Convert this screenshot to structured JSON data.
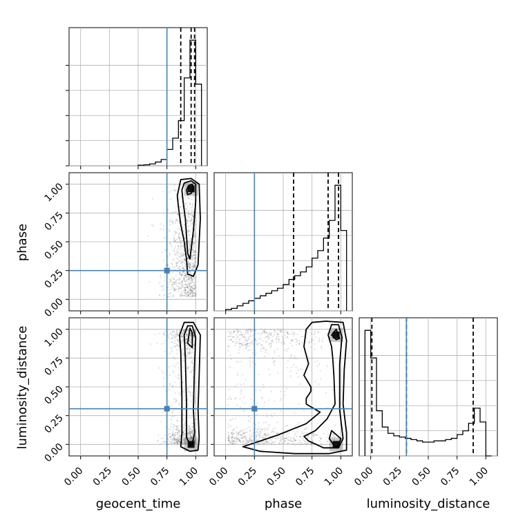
{
  "chart_data": {
    "type": "corner",
    "parameters": [
      {
        "key": "geocent_time",
        "label": "geocent_time"
      },
      {
        "key": "phase",
        "label": "phase"
      },
      {
        "key": "luminosity_distance",
        "label": "luminosity_distance"
      }
    ],
    "axis_range": [
      -0.1,
      1.1
    ],
    "ticks": [
      0.0,
      0.25,
      0.5,
      0.75,
      1.0
    ],
    "tick_labels": [
      "0.00",
      "0.25",
      "0.50",
      "0.75",
      "1.00"
    ],
    "truth_values": {
      "geocent_time": 0.75,
      "phase": 0.25,
      "luminosity_distance": 0.31
    },
    "quantiles": {
      "geocent_time": [
        0.87,
        0.96,
        0.99
      ],
      "phase": [
        0.59,
        0.89,
        0.98
      ],
      "luminosity_distance": [
        0.01,
        0.31,
        0.89
      ]
    },
    "histograms": {
      "geocent_time": {
        "bin_edges": [
          0.5,
          0.55,
          0.6,
          0.65,
          0.7,
          0.75,
          0.8,
          0.85,
          0.9,
          0.95,
          1.0,
          1.05
        ],
        "counts": [
          0.5,
          0.8,
          1.5,
          3,
          5,
          13,
          22,
          36,
          70,
          100,
          65
        ]
      },
      "phase": {
        "bin_edges": [
          0.0,
          0.05,
          0.1,
          0.15,
          0.2,
          0.25,
          0.3,
          0.35,
          0.4,
          0.45,
          0.5,
          0.55,
          0.6,
          0.65,
          0.7,
          0.75,
          0.8,
          0.85,
          0.9,
          0.95,
          1.0,
          1.05
        ],
        "counts": [
          1,
          2,
          4,
          6,
          8,
          10,
          12,
          14,
          16,
          18,
          21,
          25,
          28,
          31,
          35,
          42,
          48,
          58,
          72,
          100,
          64
        ]
      },
      "luminosity_distance": {
        "bin_edges": [
          -0.05,
          0.0,
          0.05,
          0.1,
          0.15,
          0.2,
          0.25,
          0.3,
          0.35,
          0.4,
          0.45,
          0.5,
          0.55,
          0.6,
          0.65,
          0.7,
          0.75,
          0.8,
          0.85,
          0.9,
          0.95,
          1.0,
          1.05
        ],
        "counts": [
          100,
          78,
          36,
          23,
          18,
          16,
          15,
          14,
          13,
          12,
          11,
          11,
          12,
          12,
          13,
          14,
          17,
          20,
          26,
          38,
          27,
          0
        ]
      }
    },
    "contours": {
      "phase_vs_geocent_time": [
        {
          "level": "inner",
          "x": [
            0.92,
            0.94,
            0.97,
            0.98,
            0.96,
            0.93,
            0.92
          ],
          "y": [
            0.95,
            0.99,
            1.0,
            0.96,
            0.92,
            0.91,
            0.95
          ]
        },
        {
          "level": "middle",
          "x": [
            0.88,
            0.9,
            0.96,
            1.0,
            1.0,
            0.98,
            0.95,
            0.93,
            0.92,
            0.91,
            0.89,
            0.88
          ],
          "y": [
            0.95,
            1.01,
            1.03,
            1.0,
            0.85,
            0.6,
            0.35,
            0.4,
            0.55,
            0.7,
            0.85,
            0.95
          ]
        },
        {
          "level": "outer",
          "x": [
            0.84,
            0.87,
            0.96,
            1.03,
            1.04,
            1.02,
            0.98,
            0.93,
            0.92,
            0.9,
            0.87,
            0.85,
            0.84
          ],
          "y": [
            0.9,
            1.04,
            1.05,
            1.0,
            0.7,
            0.3,
            0.2,
            0.22,
            0.35,
            0.5,
            0.65,
            0.8,
            0.9
          ]
        }
      ],
      "luminosity_distance_vs_geocent_time": [
        {
          "level": "inner",
          "x": [
            0.93,
            0.95,
            0.97,
            0.97,
            0.95,
            0.93
          ],
          "y": [
            0.88,
            1.01,
            0.97,
            0.84,
            0.86,
            0.88
          ]
        },
        {
          "level": "middle",
          "x": [
            0.9,
            0.93,
            0.97,
            1.0,
            0.99,
            0.98,
            0.99,
            0.97,
            0.95,
            0.92,
            0.92,
            0.91,
            0.9
          ],
          "y": [
            0.95,
            1.03,
            1.03,
            0.93,
            0.7,
            0.3,
            0.1,
            0.0,
            0.0,
            0.06,
            0.35,
            0.75,
            0.95
          ]
        },
        {
          "level": "outer",
          "x": [
            0.86,
            0.9,
            0.98,
            1.04,
            1.03,
            1.02,
            1.03,
            1.02,
            0.95,
            0.87,
            0.88,
            0.88,
            0.87,
            0.86
          ],
          "y": [
            0.95,
            1.06,
            1.06,
            0.95,
            0.6,
            0.3,
            0.05,
            -0.05,
            -0.06,
            -0.02,
            0.1,
            0.4,
            0.8,
            0.95
          ]
        }
      ],
      "luminosity_distance_vs_phase": [
        {
          "level": "inner",
          "x": [
            0.92,
            0.96,
            0.99,
            0.96,
            0.92
          ],
          "y": [
            0.95,
            1.0,
            0.92,
            0.91,
            0.95
          ]
        },
        {
          "level": "inner2",
          "x": [
            0.9,
            0.92,
            1.0,
            0.98,
            0.95,
            0.9
          ],
          "y": [
            0.05,
            0.12,
            0.05,
            -0.01,
            -0.02,
            0.05
          ]
        },
        {
          "level": "middle",
          "x": [
            0.89,
            0.92,
            0.98,
            1.01,
            0.99,
            0.99,
            1.02,
            0.98,
            0.85,
            0.72,
            0.68,
            0.78,
            0.88,
            0.95,
            0.94,
            0.93,
            0.92,
            0.89
          ],
          "y": [
            0.95,
            1.04,
            1.04,
            0.93,
            0.7,
            0.3,
            0.05,
            -0.03,
            -0.03,
            0.03,
            0.07,
            0.12,
            0.22,
            0.35,
            0.6,
            0.75,
            0.85,
            0.95
          ]
        },
        {
          "level": "outer",
          "x": [
            0.7,
            0.75,
            0.87,
            1.02,
            1.05,
            1.03,
            1.02,
            1.05,
            1.05,
            0.9,
            0.6,
            0.3,
            0.15,
            0.45,
            0.7,
            0.82,
            0.7,
            0.7,
            0.74,
            0.74,
            0.68,
            0.72,
            0.68,
            0.7
          ],
          "y": [
            1.0,
            1.06,
            1.07,
            1.06,
            0.9,
            0.65,
            0.35,
            0.1,
            -0.05,
            -0.08,
            -0.08,
            -0.06,
            -0.02,
            0.08,
            0.18,
            0.28,
            0.35,
            0.4,
            0.46,
            0.5,
            0.6,
            0.7,
            0.85,
            1.0
          ]
        }
      ]
    },
    "density_peaks": [
      {
        "panel": "phase_vs_geocent_time",
        "x": 0.96,
        "y": 0.96
      },
      {
        "panel": "luminosity_distance_vs_geocent_time",
        "x": 0.96,
        "y": 0.0
      },
      {
        "panel": "luminosity_distance_vs_phase",
        "x": 0.96,
        "y": 0.95
      },
      {
        "panel": "luminosity_distance_vs_phase",
        "x": 0.96,
        "y": 0.0
      }
    ]
  }
}
